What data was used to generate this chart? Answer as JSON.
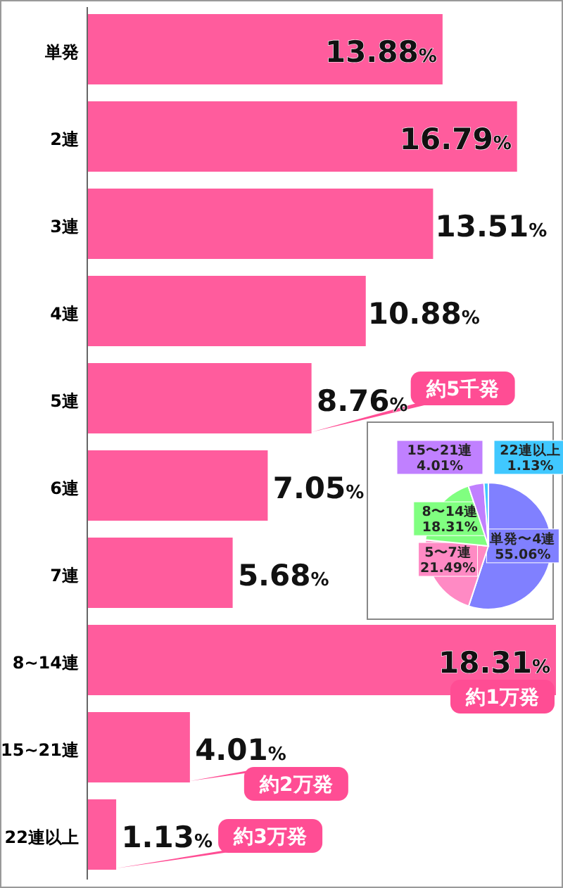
{
  "chart_data": [
    {
      "type": "bar",
      "orientation": "horizontal",
      "color": "#ff5c9d",
      "categories": [
        "単発",
        "2連",
        "3連",
        "4連",
        "5連",
        "6連",
        "7連",
        "8~14連",
        "15~21連",
        "22連以上"
      ],
      "values": [
        13.88,
        16.79,
        13.51,
        10.88,
        8.76,
        7.05,
        5.68,
        18.31,
        4.01,
        1.13
      ],
      "value_labels": [
        "13.88%",
        "16.79%",
        "13.51%",
        "10.88%",
        "8.76%",
        "7.05%",
        "5.68%",
        "18.31%",
        "4.01%",
        "1.13%"
      ],
      "data_labels": true,
      "annotations": [
        {
          "text": "約5千発",
          "x": 8.76,
          "y": "5連"
        },
        {
          "text": "約1万発",
          "x": 18.31,
          "y": "8~14連"
        },
        {
          "text": "約2万発",
          "x": 4.01,
          "y": "15~21連"
        },
        {
          "text": "約3万発",
          "x": 1.13,
          "y": "22連以上"
        }
      ]
    },
    {
      "type": "pie",
      "categories": [
        "単発〜4連",
        "5〜7連",
        "8〜14連",
        "15〜21連",
        "22連以上"
      ],
      "values": [
        55.06,
        21.49,
        18.31,
        4.01,
        1.13
      ],
      "value_labels": [
        "55.06%",
        "21.49%",
        "18.31%",
        "4.01%",
        "1.13%"
      ],
      "colors": [
        "#8080ff",
        "#ff8ac4",
        "#80ff80",
        "#c080ff",
        "#40c8ff"
      ],
      "data_labels": true
    }
  ]
}
